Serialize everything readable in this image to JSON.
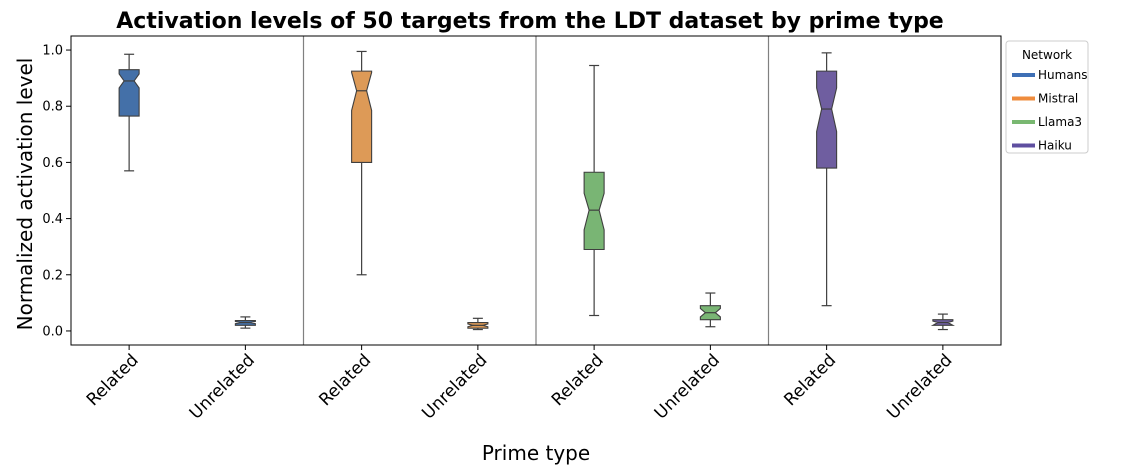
{
  "chart_data": {
    "type": "box",
    "title": "Activation levels of 50 targets from the LDT dataset by prime type",
    "xlabel": "Prime type",
    "ylabel": "Normalized activation level",
    "ylim": [
      -0.05,
      1.05
    ],
    "yticks": [
      0.0,
      0.2,
      0.4,
      0.6,
      0.8,
      1.0
    ],
    "ytick_labels": [
      "0.0",
      "0.2",
      "0.4",
      "0.6",
      "0.8",
      "1.0"
    ],
    "categories": [
      "Related",
      "Unrelated",
      "Related",
      "Unrelated",
      "Related",
      "Unrelated",
      "Related",
      "Unrelated"
    ],
    "notched": true,
    "group_separators": true,
    "legend": {
      "title": "Network",
      "position": "upper-right-outside"
    },
    "series": [
      {
        "name": "Humans",
        "color": "#4470a8",
        "boxes": [
          {
            "category": "Related",
            "min": 0.57,
            "q1": 0.765,
            "median": 0.89,
            "q3": 0.93,
            "max": 0.985,
            "notch_low": 0.865,
            "notch_high": 0.915
          },
          {
            "category": "Unrelated",
            "min": 0.01,
            "q1": 0.02,
            "median": 0.03,
            "q3": 0.037,
            "max": 0.05,
            "notch_low": 0.026,
            "notch_high": 0.034
          }
        ]
      },
      {
        "name": "Mistral",
        "color": "#dd9a57",
        "boxes": [
          {
            "category": "Related",
            "min": 0.2,
            "q1": 0.6,
            "median": 0.855,
            "q3": 0.925,
            "max": 0.995,
            "notch_low": 0.785,
            "notch_high": 0.92
          },
          {
            "category": "Unrelated",
            "min": 0.005,
            "q1": 0.01,
            "median": 0.02,
            "q3": 0.03,
            "max": 0.045,
            "notch_low": 0.015,
            "notch_high": 0.025
          }
        ]
      },
      {
        "name": "Llama3",
        "color": "#79b574",
        "boxes": [
          {
            "category": "Related",
            "min": 0.055,
            "q1": 0.29,
            "median": 0.43,
            "q3": 0.565,
            "max": 0.945,
            "notch_low": 0.36,
            "notch_high": 0.49
          },
          {
            "category": "Unrelated",
            "min": 0.015,
            "q1": 0.04,
            "median": 0.065,
            "q3": 0.09,
            "max": 0.135,
            "notch_low": 0.05,
            "notch_high": 0.08
          }
        ]
      },
      {
        "name": "Haiku",
        "color": "#6f5ea0",
        "boxes": [
          {
            "category": "Related",
            "min": 0.09,
            "q1": 0.58,
            "median": 0.79,
            "q3": 0.925,
            "max": 0.99,
            "notch_low": 0.71,
            "notch_high": 0.865
          },
          {
            "category": "Unrelated",
            "min": 0.005,
            "q1": 0.02,
            "median": 0.03,
            "q3": 0.04,
            "max": 0.06,
            "notch_low": 0.02,
            "notch_high": 0.035
          }
        ]
      }
    ],
    "legend_line_colors": [
      "#3e6fb5",
      "#ef8c3d",
      "#79b871",
      "#5f4fa0"
    ]
  }
}
